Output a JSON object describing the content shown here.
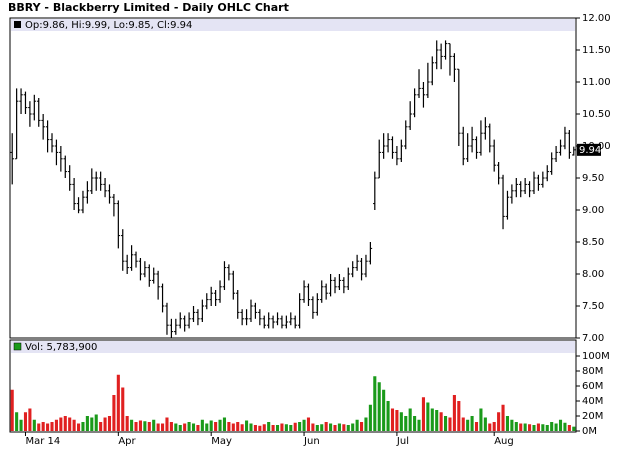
{
  "chart_data": [
    {
      "type": "ohlc",
      "title": "BBRY - Blackberry Limited - Daily OHLC Chart",
      "legend": "Op:9.86, Hi:9.99, Lo:9.85, Cl:9.94",
      "last_label": "9.94",
      "color": "#000000",
      "categories": [
        null,
        null,
        null,
        "Mar 14",
        null,
        null,
        null,
        null,
        null,
        null,
        null,
        null,
        null,
        null,
        null,
        null,
        null,
        null,
        null,
        null,
        null,
        null,
        null,
        null,
        "Apr",
        null,
        null,
        null,
        null,
        null,
        null,
        null,
        null,
        null,
        null,
        null,
        null,
        null,
        null,
        null,
        null,
        null,
        null,
        null,
        null,
        "May",
        null,
        null,
        null,
        null,
        null,
        null,
        null,
        null,
        null,
        null,
        null,
        null,
        null,
        null,
        null,
        null,
        null,
        null,
        null,
        null,
        "Jun",
        null,
        null,
        null,
        null,
        null,
        null,
        null,
        null,
        null,
        null,
        null,
        null,
        null,
        null,
        null,
        null,
        null,
        null,
        null,
        null,
        "Jul",
        null,
        null,
        null,
        null,
        null,
        null,
        null,
        null,
        null,
        null,
        null,
        null,
        null,
        null,
        null,
        null,
        null,
        null,
        null,
        null,
        null,
        "Aug",
        null,
        null,
        null,
        null,
        null,
        null,
        null,
        null,
        null,
        null,
        null,
        null,
        null,
        null,
        null,
        null,
        null,
        null
      ],
      "open": [
        9.9,
        9.8,
        10.7,
        10.8,
        10.6,
        10.5,
        10.7,
        10.4,
        10.3,
        10.1,
        10.0,
        9.9,
        9.8,
        9.6,
        9.4,
        9.1,
        9.0,
        9.2,
        9.3,
        9.5,
        9.5,
        9.4,
        9.3,
        9.2,
        9.1,
        8.6,
        8.2,
        8.1,
        8.3,
        8.2,
        8.0,
        8.1,
        7.9,
        8.0,
        7.8,
        7.5,
        7.2,
        7.1,
        7.2,
        7.3,
        7.2,
        7.3,
        7.4,
        7.3,
        7.5,
        7.6,
        7.7,
        7.6,
        7.8,
        8.1,
        8.0,
        7.7,
        7.4,
        7.3,
        7.3,
        7.5,
        7.4,
        7.3,
        7.2,
        7.3,
        7.25,
        7.3,
        7.2,
        7.25,
        7.3,
        7.2,
        7.6,
        7.8,
        7.6,
        7.4,
        7.6,
        7.8,
        7.7,
        7.9,
        7.8,
        7.9,
        7.8,
        8.0,
        8.1,
        8.2,
        8.0,
        8.2,
        9.1,
        9.5,
        9.9,
        10.0,
        10.1,
        9.9,
        9.8,
        10.0,
        10.3,
        10.5,
        10.8,
        10.9,
        10.8,
        11.0,
        11.3,
        11.5,
        11.4,
        11.6,
        11.4,
        11.2,
        10.2,
        9.8,
        10.0,
        10.1,
        9.9,
        10.2,
        10.3,
        10.0,
        9.7,
        9.5,
        8.9,
        9.2,
        9.3,
        9.4,
        9.3,
        9.4,
        9.3,
        9.5,
        9.4,
        9.5,
        9.6,
        9.8,
        9.9,
        10.0,
        10.2,
        9.86
      ],
      "high": [
        10.2,
        10.9,
        10.9,
        10.85,
        10.7,
        10.8,
        10.75,
        10.5,
        10.4,
        10.2,
        10.1,
        10.0,
        9.85,
        9.7,
        9.5,
        9.2,
        9.3,
        9.45,
        9.65,
        9.6,
        9.6,
        9.5,
        9.4,
        9.25,
        9.15,
        8.7,
        8.3,
        8.45,
        8.35,
        8.25,
        8.2,
        8.15,
        8.1,
        8.05,
        7.85,
        7.55,
        7.3,
        7.3,
        7.4,
        7.35,
        7.4,
        7.5,
        7.45,
        7.6,
        7.7,
        7.8,
        7.75,
        7.9,
        8.2,
        8.15,
        8.05,
        7.75,
        7.45,
        7.45,
        7.6,
        7.55,
        7.45,
        7.35,
        7.4,
        7.35,
        7.4,
        7.35,
        7.35,
        7.4,
        7.35,
        7.7,
        7.9,
        7.85,
        7.65,
        7.7,
        7.9,
        7.85,
        8.0,
        7.95,
        8.0,
        7.95,
        8.1,
        8.2,
        8.3,
        8.25,
        8.3,
        8.5,
        9.6,
        10.1,
        10.2,
        10.2,
        10.15,
        10.0,
        10.1,
        10.4,
        10.7,
        10.9,
        11.2,
        11.0,
        11.3,
        11.4,
        11.65,
        11.6,
        11.65,
        11.6,
        11.45,
        11.2,
        10.3,
        10.2,
        10.3,
        10.15,
        10.4,
        10.45,
        10.35,
        10.1,
        9.75,
        9.55,
        9.3,
        9.4,
        9.5,
        9.45,
        9.5,
        9.45,
        9.6,
        9.55,
        9.6,
        9.7,
        9.9,
        10.0,
        10.1,
        10.3,
        10.25,
        9.99
      ],
      "low": [
        9.4,
        9.8,
        10.5,
        10.5,
        10.3,
        10.4,
        10.3,
        10.1,
        9.9,
        9.9,
        9.7,
        9.6,
        9.5,
        9.3,
        9.0,
        8.95,
        8.95,
        9.1,
        9.25,
        9.3,
        9.3,
        9.2,
        9.1,
        8.9,
        8.4,
        8.05,
        8.0,
        8.05,
        8.1,
        7.9,
        7.95,
        7.8,
        7.85,
        7.6,
        7.4,
        7.05,
        7.0,
        7.05,
        7.15,
        7.1,
        7.15,
        7.25,
        7.2,
        7.25,
        7.45,
        7.5,
        7.5,
        7.55,
        7.75,
        7.9,
        7.6,
        7.3,
        7.2,
        7.2,
        7.25,
        7.3,
        7.2,
        7.15,
        7.15,
        7.15,
        7.2,
        7.15,
        7.15,
        7.2,
        7.15,
        7.15,
        7.55,
        7.5,
        7.3,
        7.35,
        7.55,
        7.6,
        7.65,
        7.7,
        7.75,
        7.7,
        7.75,
        7.95,
        8.05,
        7.9,
        7.95,
        8.15,
        9.0,
        9.5,
        9.8,
        9.9,
        9.8,
        9.7,
        9.75,
        9.95,
        10.25,
        10.45,
        10.75,
        10.6,
        10.75,
        10.95,
        11.2,
        11.2,
        11.35,
        11.1,
        11.0,
        10.0,
        9.7,
        9.75,
        9.9,
        9.8,
        9.85,
        10.1,
        9.9,
        9.6,
        9.4,
        8.7,
        8.85,
        9.1,
        9.2,
        9.2,
        9.25,
        9.2,
        9.25,
        9.3,
        9.35,
        9.45,
        9.55,
        9.75,
        9.85,
        9.95,
        9.8,
        9.85
      ],
      "close": [
        9.8,
        10.7,
        10.8,
        10.6,
        10.5,
        10.7,
        10.4,
        10.3,
        10.1,
        10.0,
        9.9,
        9.8,
        9.6,
        9.4,
        9.1,
        9.0,
        9.2,
        9.3,
        9.5,
        9.5,
        9.4,
        9.3,
        9.2,
        9.1,
        8.6,
        8.2,
        8.1,
        8.3,
        8.2,
        8.0,
        8.1,
        7.9,
        8.0,
        7.8,
        7.5,
        7.2,
        7.1,
        7.2,
        7.3,
        7.2,
        7.3,
        7.4,
        7.3,
        7.5,
        7.6,
        7.7,
        7.6,
        7.8,
        8.1,
        8.0,
        7.7,
        7.4,
        7.3,
        7.3,
        7.5,
        7.4,
        7.3,
        7.2,
        7.3,
        7.25,
        7.3,
        7.2,
        7.25,
        7.3,
        7.2,
        7.6,
        7.8,
        7.6,
        7.4,
        7.6,
        7.8,
        7.7,
        7.9,
        7.8,
        7.9,
        7.8,
        8.0,
        8.1,
        8.2,
        8.0,
        8.2,
        8.4,
        9.5,
        9.9,
        10.0,
        10.1,
        9.9,
        9.8,
        10.0,
        10.3,
        10.5,
        10.8,
        10.9,
        10.8,
        11.0,
        11.3,
        11.5,
        11.4,
        11.6,
        11.4,
        11.2,
        10.2,
        9.8,
        10.0,
        10.1,
        9.9,
        10.2,
        10.3,
        10.0,
        9.7,
        9.5,
        8.9,
        9.2,
        9.3,
        9.4,
        9.3,
        9.4,
        9.3,
        9.5,
        9.4,
        9.5,
        9.6,
        9.8,
        9.9,
        10.0,
        10.2,
        9.9,
        9.94
      ],
      "ylim": [
        7,
        12
      ],
      "yticks": [
        {
          "value": 7,
          "label": "7.00"
        },
        {
          "value": 7.5,
          "label": "7.50"
        },
        {
          "value": 8,
          "label": "8.00"
        },
        {
          "value": 8.5,
          "label": "8.50"
        },
        {
          "value": 9,
          "label": "9.00"
        },
        {
          "value": 9.5,
          "label": "9.50"
        },
        {
          "value": 10,
          "label": "10.00"
        },
        {
          "value": 10.5,
          "label": "10.50"
        },
        {
          "value": 11,
          "label": "11.00"
        },
        {
          "value": 11.5,
          "label": "11.50"
        },
        {
          "value": 12,
          "label": "12.00"
        }
      ]
    },
    {
      "type": "bar",
      "legend": "Vol: 5,783,900",
      "up_color": "#1a9a1a",
      "down_color": "#e02020",
      "values": [
        55000000,
        25000000,
        15000000,
        25000000,
        30000000,
        15000000,
        10000000,
        12000000,
        10000000,
        12000000,
        15000000,
        18000000,
        20000000,
        18000000,
        15000000,
        10000000,
        12000000,
        20000000,
        18000000,
        22000000,
        12000000,
        18000000,
        20000000,
        48000000,
        75000000,
        58000000,
        20000000,
        15000000,
        12000000,
        14000000,
        13000000,
        12000000,
        15000000,
        10000000,
        10000000,
        18000000,
        12000000,
        10000000,
        8000000,
        10000000,
        12000000,
        10000000,
        8000000,
        15000000,
        10000000,
        14000000,
        12000000,
        15000000,
        18000000,
        12000000,
        10000000,
        12000000,
        9000000,
        14000000,
        10000000,
        8000000,
        7000000,
        9000000,
        12000000,
        8000000,
        8000000,
        10000000,
        9000000,
        8000000,
        11000000,
        12000000,
        15000000,
        18000000,
        10000000,
        8000000,
        9000000,
        12000000,
        10000000,
        8000000,
        10000000,
        9000000,
        8000000,
        10000000,
        15000000,
        12000000,
        18000000,
        35000000,
        73000000,
        65000000,
        55000000,
        40000000,
        30000000,
        28000000,
        25000000,
        20000000,
        30000000,
        20000000,
        15000000,
        45000000,
        38000000,
        30000000,
        28000000,
        25000000,
        20000000,
        18000000,
        48000000,
        40000000,
        18000000,
        15000000,
        20000000,
        12000000,
        30000000,
        18000000,
        10000000,
        12000000,
        25000000,
        35000000,
        20000000,
        15000000,
        12000000,
        10000000,
        10000000,
        9000000,
        8000000,
        10000000,
        9000000,
        8000000,
        12000000,
        10000000,
        15000000,
        11000000,
        8000000,
        5783900
      ],
      "ylim": [
        0,
        100000000
      ],
      "yticks": [
        {
          "value": 0,
          "label": "0M"
        },
        {
          "value": 20000000,
          "label": "20M"
        },
        {
          "value": 40000000,
          "label": "40M"
        },
        {
          "value": 60000000,
          "label": "60M"
        },
        {
          "value": 80000000,
          "label": "80M"
        },
        {
          "value": 100000000,
          "label": "100M"
        }
      ]
    }
  ]
}
